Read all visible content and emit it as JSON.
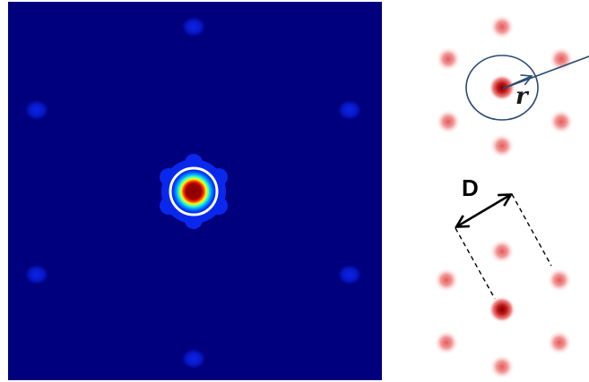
{
  "left_panel": {
    "description_colormap": "jet",
    "background_color": "#00007f",
    "spot_color": "#0a1fd6",
    "ring_color": "#ffffff"
  },
  "right_panel": {
    "labels": {
      "spacing": "D",
      "radius": "r"
    },
    "spot_color": "#e23b3b",
    "center_color": "#8a0000",
    "circle_color": "#2c4b73",
    "arrow_color": "#000000"
  }
}
